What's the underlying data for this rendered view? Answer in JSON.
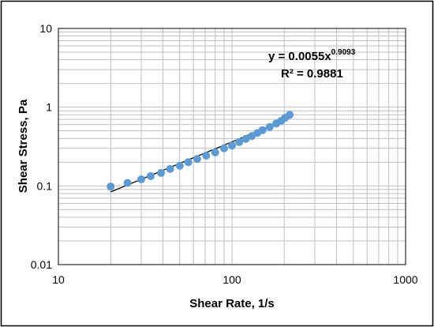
{
  "chart_data": {
    "type": "scatter",
    "title": "",
    "xlabel": "Shear Rate, 1/s",
    "ylabel": "Shear Stress, Pa",
    "xscale": "log",
    "yscale": "log",
    "xlim": [
      10,
      1000
    ],
    "ylim": [
      0.01,
      10
    ],
    "xticks": [
      "10",
      "100",
      "1000"
    ],
    "yticks": [
      "0.01",
      "0.1",
      "1",
      "10"
    ],
    "grid": true,
    "legend": "none",
    "series": [
      {
        "marker_color": "#5B9BD5",
        "x": [
          20,
          25,
          30,
          34,
          39,
          44,
          50,
          56,
          63,
          71,
          80,
          90,
          100,
          110,
          120,
          130,
          140,
          150,
          165,
          180,
          192,
          202,
          215
        ],
        "y": [
          0.098,
          0.109,
          0.121,
          0.133,
          0.146,
          0.164,
          0.18,
          0.2,
          0.22,
          0.242,
          0.266,
          0.3,
          0.325,
          0.36,
          0.395,
          0.43,
          0.47,
          0.51,
          0.56,
          0.62,
          0.67,
          0.73,
          0.8
        ]
      }
    ],
    "trendline": {
      "type": "power",
      "coefficient": 0.0055,
      "exponent": 0.9093,
      "x_range": [
        20,
        215
      ],
      "color": "#000000",
      "equation_base": "y = 0.0055x",
      "equation_exponent": "0.9093",
      "r_squared_label": "R² = 0.9881"
    },
    "colors": {
      "gridline": "#bfbfbf",
      "axis": "#000000",
      "frame_border": "#000000"
    }
  }
}
